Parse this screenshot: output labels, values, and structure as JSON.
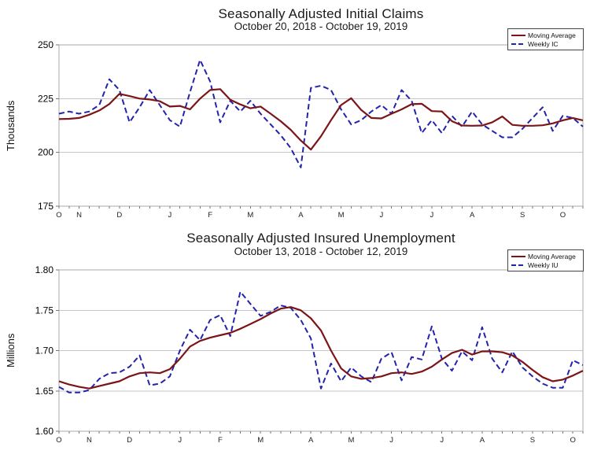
{
  "page": {
    "background": "#ffffff"
  },
  "chart_data": [
    {
      "type": "line",
      "title": "Seasonally Adjusted Initial Claims",
      "subtitle": "October 20, 2018 - October 19, 2019",
      "ylabel": "Thousands",
      "ylim": [
        175,
        250
      ],
      "y_ticks": [
        {
          "value": 250,
          "label": "250"
        },
        {
          "value": 225,
          "label": "225"
        },
        {
          "value": 200,
          "label": "200"
        },
        {
          "value": 175,
          "label": "175"
        }
      ],
      "x_unit": "week",
      "weeks": 53,
      "grid": "horizontal",
      "legend_position": "top-right",
      "month_ticks": [
        {
          "label": "O",
          "week": 1
        },
        {
          "label": "N",
          "week": 3
        },
        {
          "label": "D",
          "week": 7
        },
        {
          "label": "J",
          "week": 12
        },
        {
          "label": "F",
          "week": 16
        },
        {
          "label": "M",
          "week": 20
        },
        {
          "label": "A",
          "week": 25
        },
        {
          "label": "M",
          "week": 29
        },
        {
          "label": "J",
          "week": 33
        },
        {
          "label": "J",
          "week": 38
        },
        {
          "label": "A",
          "week": 42
        },
        {
          "label": "S",
          "week": 47
        },
        {
          "label": "O",
          "week": 51
        }
      ],
      "series": [
        {
          "name": "Moving Average",
          "color": "#7b1517",
          "style": "solid",
          "values": [
            215.5,
            215.6,
            216.0,
            217.5,
            219.5,
            222.5,
            227.2,
            226.2,
            225.0,
            224.6,
            223.8,
            221.3,
            221.6,
            220.0,
            225.0,
            229.0,
            229.4,
            224.5,
            222.3,
            220.5,
            221.3,
            218.0,
            214.5,
            210.5,
            205.5,
            201.3,
            207.5,
            215.0,
            222.0,
            225.2,
            219.7,
            216.0,
            215.8,
            218.0,
            220.0,
            222.4,
            222.6,
            219.2,
            219.0,
            214.5,
            212.5,
            212.4,
            212.5,
            214.0,
            216.7,
            212.8,
            212.4,
            212.4,
            212.6,
            213.5,
            214.9,
            216.0,
            214.9
          ]
        },
        {
          "name": "Weekly IC",
          "color": "#2323ac",
          "style": "dashed",
          "values": [
            218,
            219,
            218,
            219,
            222,
            234,
            229,
            214,
            221,
            229,
            222,
            215,
            212,
            228,
            243,
            233,
            214,
            224,
            219,
            224,
            218,
            213,
            208,
            202,
            193,
            230,
            231,
            229,
            220,
            213,
            215,
            219,
            222,
            218,
            229,
            224,
            209,
            215,
            209,
            217,
            212,
            219,
            213,
            210,
            207,
            207,
            211,
            216,
            221,
            210,
            217,
            216,
            212
          ]
        }
      ]
    },
    {
      "type": "line",
      "title": "Seasonally Adjusted Insured Unemployment",
      "subtitle": "October 13, 2018 - October 12, 2019",
      "ylabel": "Millions",
      "ylim": [
        1.6,
        1.8
      ],
      "y_ticks": [
        {
          "value": 1.8,
          "label": "1.80"
        },
        {
          "value": 1.75,
          "label": "1.75"
        },
        {
          "value": 1.7,
          "label": "1.70"
        },
        {
          "value": 1.65,
          "label": "1.65"
        },
        {
          "value": 1.6,
          "label": "1.60"
        }
      ],
      "x_unit": "week",
      "weeks": 53,
      "grid": "horizontal",
      "legend_position": "top-right",
      "month_ticks": [
        {
          "label": "O",
          "week": 1
        },
        {
          "label": "N",
          "week": 4
        },
        {
          "label": "D",
          "week": 8
        },
        {
          "label": "J",
          "week": 13
        },
        {
          "label": "F",
          "week": 17
        },
        {
          "label": "M",
          "week": 21
        },
        {
          "label": "A",
          "week": 26
        },
        {
          "label": "M",
          "week": 30
        },
        {
          "label": "J",
          "week": 34
        },
        {
          "label": "J",
          "week": 39
        },
        {
          "label": "A",
          "week": 43
        },
        {
          "label": "S",
          "week": 48
        },
        {
          "label": "O",
          "week": 52
        }
      ],
      "series": [
        {
          "name": "Moving Average",
          "color": "#7b1517",
          "style": "solid",
          "values": [
            1.662,
            1.658,
            1.655,
            1.653,
            1.656,
            1.659,
            1.662,
            1.668,
            1.672,
            1.673,
            1.672,
            1.677,
            1.69,
            1.705,
            1.712,
            1.716,
            1.719,
            1.722,
            1.727,
            1.733,
            1.739,
            1.746,
            1.752,
            1.754,
            1.75,
            1.74,
            1.725,
            1.7,
            1.678,
            1.668,
            1.665,
            1.666,
            1.668,
            1.672,
            1.673,
            1.671,
            1.674,
            1.68,
            1.689,
            1.697,
            1.701,
            1.695,
            1.699,
            1.699,
            1.698,
            1.694,
            1.686,
            1.676,
            1.667,
            1.662,
            1.664,
            1.669,
            1.675
          ]
        },
        {
          "name": "Weekly IU",
          "color": "#2323ac",
          "style": "dashed",
          "values": [
            1.655,
            1.648,
            1.648,
            1.651,
            1.665,
            1.672,
            1.673,
            1.68,
            1.694,
            1.657,
            1.659,
            1.668,
            1.7,
            1.726,
            1.713,
            1.738,
            1.744,
            1.718,
            1.773,
            1.758,
            1.743,
            1.748,
            1.756,
            1.753,
            1.738,
            1.715,
            1.653,
            1.684,
            1.662,
            1.679,
            1.668,
            1.661,
            1.69,
            1.698,
            1.663,
            1.692,
            1.689,
            1.73,
            1.69,
            1.675,
            1.699,
            1.688,
            1.729,
            1.69,
            1.673,
            1.699,
            1.679,
            1.668,
            1.659,
            1.654,
            1.654,
            1.688,
            1.682
          ]
        }
      ]
    }
  ],
  "style": {
    "frame_color": "#a9a9a9",
    "grid_color": "#c6c6c6",
    "tick_color": "#777777",
    "text_color": "#000000"
  }
}
